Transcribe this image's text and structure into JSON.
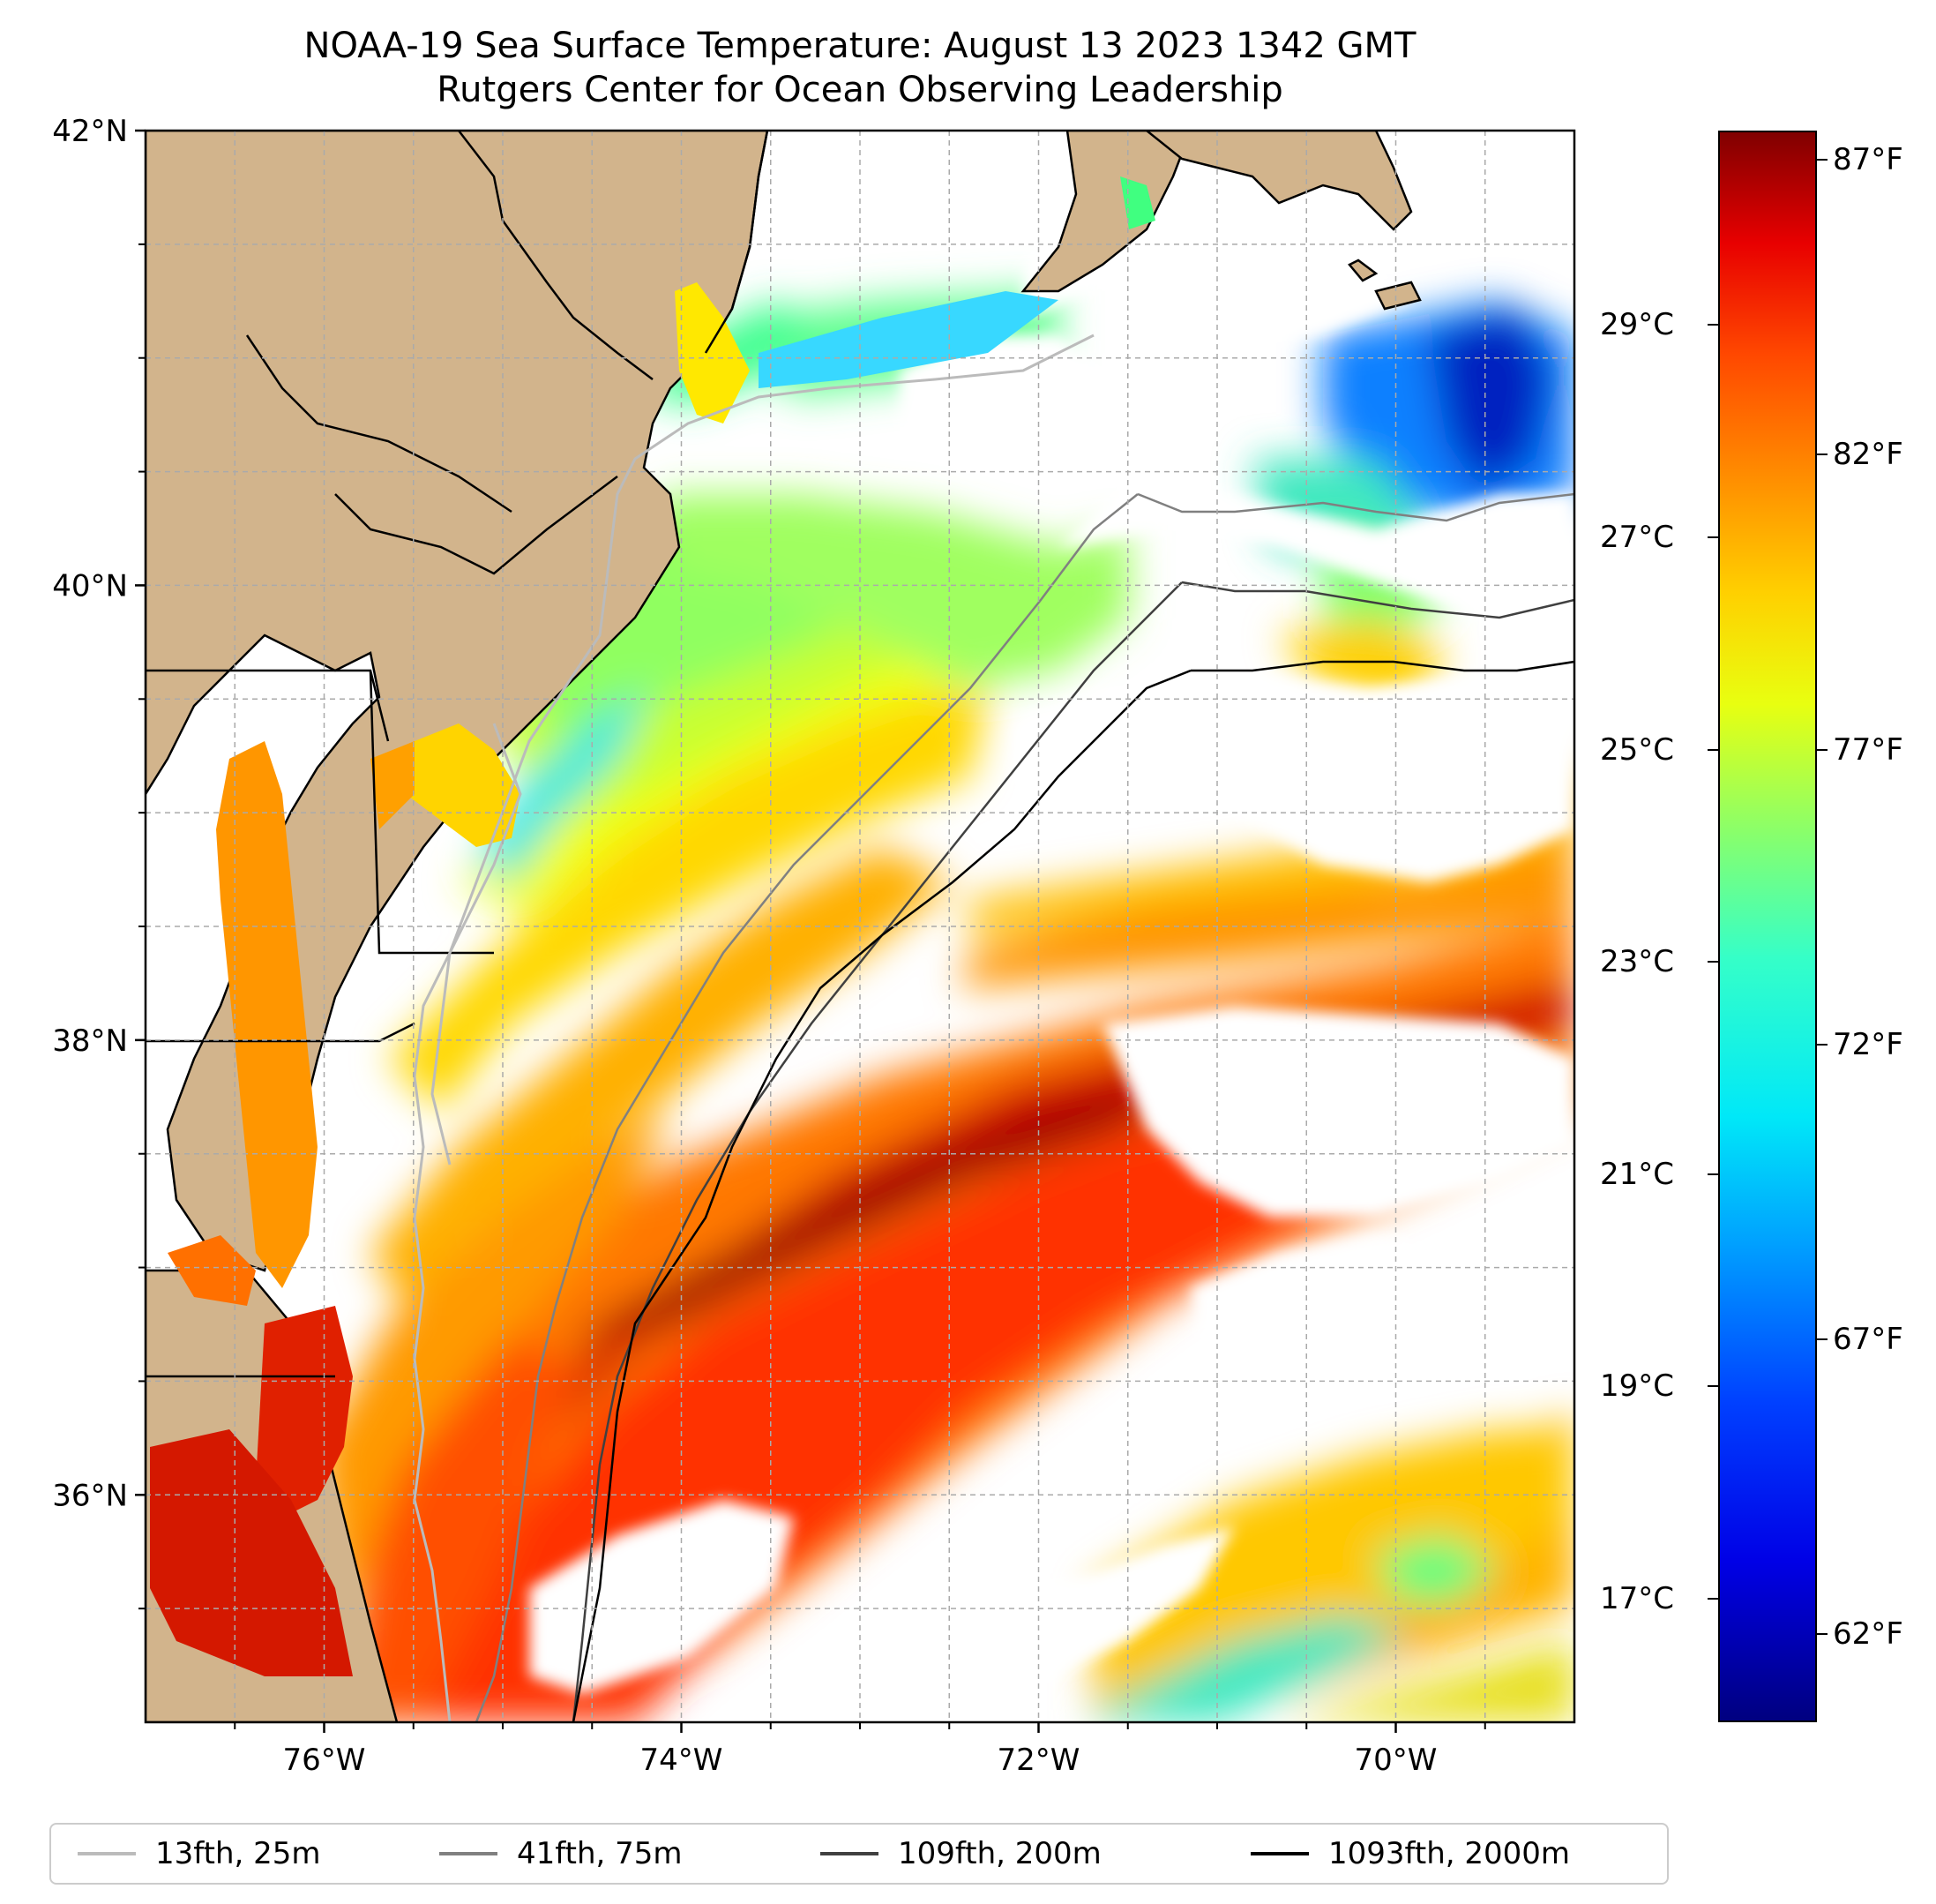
{
  "title": {
    "line1": "NOAA-19 Sea Surface Temperature: August 13 2023 1342 GMT",
    "line2": "Rutgers Center for Ocean Observing Leadership"
  },
  "axes": {
    "lat_range": [
      35,
      42
    ],
    "lon_range": [
      -77,
      -69
    ],
    "lat_ticks": [
      {
        "value": 42,
        "label": "42°N"
      },
      {
        "value": 40,
        "label": "40°N"
      },
      {
        "value": 38,
        "label": "38°N"
      },
      {
        "value": 36,
        "label": "36°N"
      }
    ],
    "lon_ticks": [
      {
        "value": -76,
        "label": "76°W"
      },
      {
        "value": -74,
        "label": "74°W"
      },
      {
        "value": -72,
        "label": "72°W"
      },
      {
        "value": -70,
        "label": "70°W"
      }
    ],
    "grid": true
  },
  "colorbar": {
    "colormap": "jet",
    "range_f": [
      60.5,
      87.5
    ],
    "fahrenheit_ticks": [
      {
        "value": 87,
        "label": "87°F"
      },
      {
        "value": 82,
        "label": "82°F"
      },
      {
        "value": 77,
        "label": "77°F"
      },
      {
        "value": 72,
        "label": "72°F"
      },
      {
        "value": 67,
        "label": "67°F"
      },
      {
        "value": 62,
        "label": "62°F"
      }
    ],
    "celsius_ticks": [
      {
        "value": 29,
        "label": "29°C"
      },
      {
        "value": 27,
        "label": "27°C"
      },
      {
        "value": 25,
        "label": "25°C"
      },
      {
        "value": 23,
        "label": "23°C"
      },
      {
        "value": 21,
        "label": "21°C"
      },
      {
        "value": 19,
        "label": "19°C"
      },
      {
        "value": 17,
        "label": "17°C"
      }
    ]
  },
  "legend": {
    "placement": "bottom",
    "items": [
      {
        "label": "13fth, 25m",
        "color": "#bbbbbb"
      },
      {
        "label": "41fth, 75m",
        "color": "#808080"
      },
      {
        "label": "109fth, 200m",
        "color": "#404040"
      },
      {
        "label": "1093fth, 2000m",
        "color": "#000000"
      }
    ]
  },
  "colors": {
    "land": "#d2b48c",
    "no_data": "#ffffff"
  }
}
